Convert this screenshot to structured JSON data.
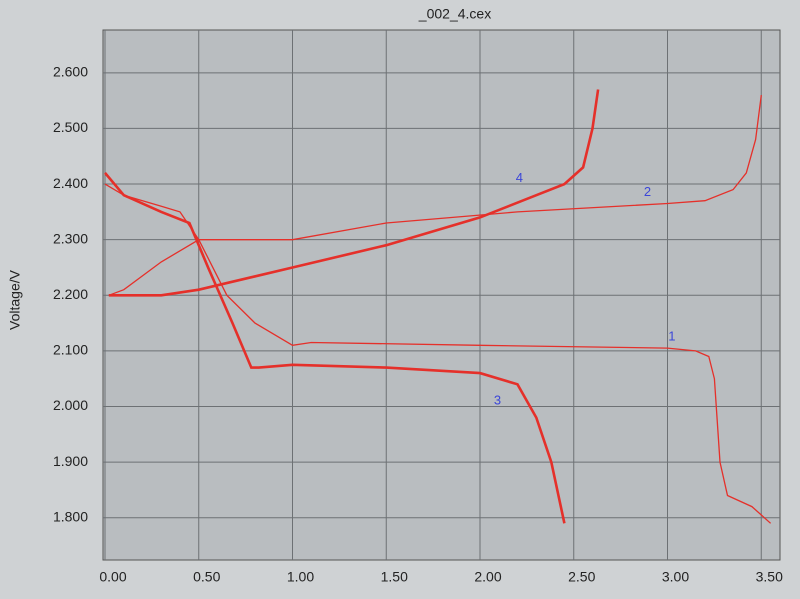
{
  "chart_data": {
    "type": "line",
    "title": "_002_4.cex",
    "y_label": "Voltage/V",
    "xlim": [
      0,
      3.6
    ],
    "ylim": [
      1.724,
      2.677
    ],
    "xticks": [
      {
        "value": 0,
        "label": "0.00"
      },
      {
        "value": 0.5,
        "label": "0.50"
      },
      {
        "value": 1,
        "label": "1.00"
      },
      {
        "value": 1.5,
        "label": "1.50"
      },
      {
        "value": 2,
        "label": "2.00"
      },
      {
        "value": 2.5,
        "label": "2.50"
      },
      {
        "value": 3,
        "label": "3.00"
      },
      {
        "value": 3.5,
        "label": "3.50"
      }
    ],
    "yticks": [
      {
        "value": 1.8,
        "label": "1.800"
      },
      {
        "value": 1.9,
        "label": "1.900"
      },
      {
        "value": 2.0,
        "label": "2.000"
      },
      {
        "value": 2.1,
        "label": "2.100"
      },
      {
        "value": 2.2,
        "label": "2.200"
      },
      {
        "value": 2.3,
        "label": "2.300"
      },
      {
        "value": 2.4,
        "label": "2.400"
      },
      {
        "value": 2.5,
        "label": "2.500"
      },
      {
        "value": 2.6,
        "label": "2.600"
      }
    ],
    "grid": true,
    "series": [
      {
        "name": "1",
        "color": "#e5302a",
        "x": [
          0,
          0.1,
          0.3,
          0.4,
          0.5,
          0.65,
          0.8,
          1.0,
          1.1,
          2.0,
          3.0,
          3.15,
          3.22,
          3.25,
          3.28,
          3.32,
          3.45,
          3.55
        ],
        "values": [
          2.4,
          2.38,
          2.36,
          2.35,
          2.3,
          2.2,
          2.15,
          2.11,
          2.115,
          2.11,
          2.105,
          2.1,
          2.09,
          2.05,
          1.9,
          1.84,
          1.82,
          1.79
        ]
      },
      {
        "name": "2",
        "color": "#e5302a",
        "x": [
          0.02,
          0.1,
          0.3,
          0.5,
          1.0,
          1.5,
          2.2,
          3.0,
          3.2,
          3.35,
          3.42,
          3.47,
          3.5
        ],
        "values": [
          2.2,
          2.21,
          2.26,
          2.3,
          2.3,
          2.33,
          2.35,
          2.365,
          2.37,
          2.39,
          2.42,
          2.48,
          2.56
        ]
      },
      {
        "name": "3",
        "color": "#e5302a",
        "x": [
          0,
          0.1,
          0.3,
          0.45,
          0.55,
          0.68,
          0.78,
          0.82,
          1.0,
          1.5,
          2.0,
          2.2,
          2.3,
          2.38,
          2.45
        ],
        "values": [
          2.42,
          2.38,
          2.35,
          2.33,
          2.25,
          2.15,
          2.07,
          2.07,
          2.075,
          2.07,
          2.06,
          2.04,
          1.98,
          1.9,
          1.79
        ]
      },
      {
        "name": "4",
        "color": "#e5302a",
        "x": [
          0.02,
          0.3,
          0.5,
          1.0,
          1.5,
          2.0,
          2.3,
          2.45,
          2.55,
          2.6,
          2.63
        ],
        "values": [
          2.2,
          2.2,
          2.21,
          2.25,
          2.29,
          2.34,
          2.38,
          2.4,
          2.43,
          2.5,
          2.57
        ]
      }
    ]
  }
}
